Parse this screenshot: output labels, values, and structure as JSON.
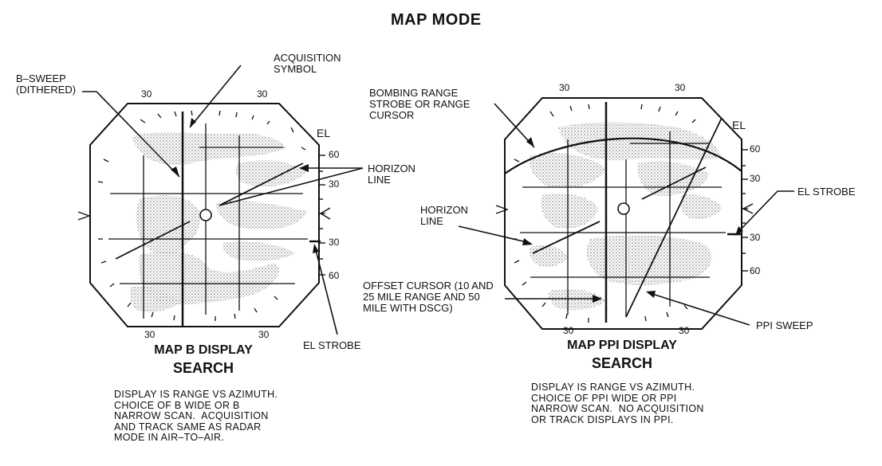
{
  "title": "MAP MODE",
  "left": {
    "caption_line1": "MAP B DISPLAY",
    "caption_line2": "SEARCH",
    "description": "DISPLAY IS RANGE VS AZIMUTH.\nCHOICE OF B WIDE OR B\nNARROW SCAN.  ACQUISITION\nAND TRACK SAME AS RADAR\nMODE IN AIR–TO–AIR.",
    "top_ticks": [
      "30",
      "30"
    ],
    "bottom_ticks": [
      "30",
      "30"
    ],
    "el_label": "EL",
    "el_ticks": [
      "60",
      "30",
      "30",
      "60"
    ],
    "labels": {
      "b_sweep": "B–SWEEP\n(DITHERED)",
      "acquisition_symbol": "ACQUISITION\nSYMBOL",
      "horizon_line": "HORIZON\nLINE",
      "el_strobe": "EL STROBE"
    }
  },
  "right": {
    "caption_line1": "MAP PPI DISPLAY",
    "caption_line2": "SEARCH",
    "description": "DISPLAY IS RANGE VS AZIMUTH.\nCHOICE OF PPI WIDE OR PPI\nNARROW SCAN.  NO ACQUISITION\nOR TRACK DISPLAYS IN PPI.",
    "top_ticks": [
      "30",
      "30"
    ],
    "bottom_ticks": [
      "30",
      "30"
    ],
    "el_label": "EL",
    "el_ticks": [
      "60",
      "30",
      "30",
      "60"
    ],
    "labels": {
      "bombing_range_strobe": "BOMBING RANGE\nSTROBE OR RANGE\nCURSOR",
      "horizon_line": "HORIZON\nLINE",
      "el_strobe": "EL STROBE",
      "offset_cursor": "OFFSET CURSOR (10 AND\n25 MILE RANGE AND 50\nMILE WITH DSCG)",
      "ppi_sweep": "PPI SWEEP"
    }
  }
}
